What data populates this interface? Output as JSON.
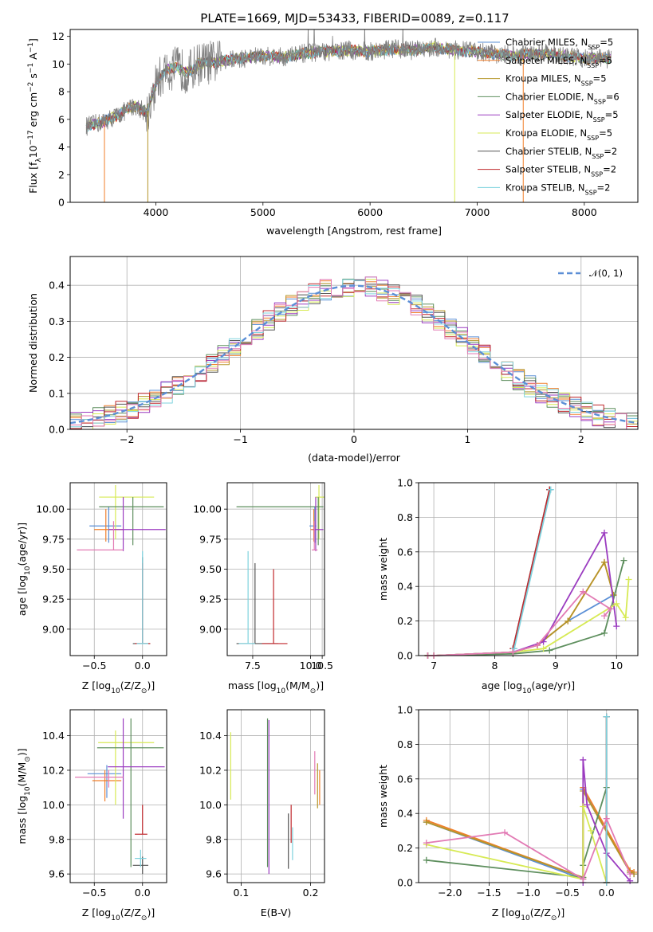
{
  "figure": {
    "title": "PLATE=1669, MJD=53433, FIBERID=0089, z=0.117"
  },
  "legend_models": [
    {
      "name": "Chabrier MILES",
      "nssp": "5",
      "color": "#5a8fd6"
    },
    {
      "name": "Salpeter MILES",
      "nssp": "5",
      "color": "#f07f2a"
    },
    {
      "name": "Kroupa MILES",
      "nssp": "5",
      "color": "#b5962a"
    },
    {
      "name": "Chabrier ELODIE",
      "nssp": "6",
      "color": "#5e8f5e"
    },
    {
      "name": "Salpeter ELODIE",
      "nssp": "5",
      "color": "#9b3cc0"
    },
    {
      "name": "Kroupa ELODIE",
      "nssp": "5",
      "color": "#d7ea55"
    },
    {
      "name": "Chabrier STELIB",
      "nssp": "2",
      "color": "#555555"
    },
    {
      "name": "Salpeter STELIB",
      "nssp": "2",
      "color": "#c0282c"
    },
    {
      "name": "Kroupa STELIB",
      "nssp": "2",
      "color": "#7ed2de"
    }
  ],
  "extra_colors": {
    "pink": "#e27ab4",
    "data_gray": "#808080",
    "gaussian": "#5b8ed6"
  },
  "chart_data": [
    {
      "id": "spectrum",
      "type": "line",
      "title": "PLATE=1669, MJD=53433, FIBERID=0089, z=0.117",
      "xlabel": "wavelength [Angstrom, rest frame]",
      "ylabel_prefix": "Flux [f",
      "ylabel_mid": "10",
      "ylabel_sup1": "−17",
      "ylabel_mid2": " erg cm",
      "ylabel_sup2": "−2",
      "ylabel_mid3": " s",
      "ylabel_sup3": "−1",
      "ylabel_suffix": " A",
      "ylabel_sup4": "−1",
      "ylabel_close": "]",
      "xlim": [
        3200,
        8500
      ],
      "ylim": [
        0,
        12.5
      ],
      "xticks": [
        "4000",
        "5000",
        "6000",
        "7000",
        "8000"
      ],
      "yticks": [
        "0",
        "2",
        "4",
        "6",
        "8",
        "10",
        "12"
      ],
      "grid": false,
      "legend_position": "top-right",
      "data_series": "observed spectrum (gray)",
      "trend": [
        [
          3350,
          5.5
        ],
        [
          3500,
          5.8
        ],
        [
          3650,
          6.3
        ],
        [
          3800,
          7.0
        ],
        [
          3920,
          6.5
        ],
        [
          4000,
          8.6
        ],
        [
          4100,
          9.6
        ],
        [
          4200,
          9.7
        ],
        [
          4300,
          9.4
        ],
        [
          4400,
          10.0
        ],
        [
          4600,
          10.2
        ],
        [
          4800,
          10.4
        ],
        [
          5000,
          10.6
        ],
        [
          5200,
          10.5
        ],
        [
          5400,
          10.8
        ],
        [
          5600,
          10.9
        ],
        [
          5800,
          11.0
        ],
        [
          6000,
          10.9
        ],
        [
          6200,
          11.1
        ],
        [
          6400,
          11.0
        ],
        [
          6600,
          11.2
        ],
        [
          6800,
          11.0
        ],
        [
          7000,
          10.9
        ],
        [
          7200,
          10.7
        ],
        [
          7400,
          10.6
        ],
        [
          7600,
          10.8
        ],
        [
          7800,
          10.6
        ],
        [
          8000,
          10.4
        ],
        [
          8250,
          10.4
        ]
      ]
    },
    {
      "id": "residuals",
      "type": "line",
      "xlabel": "(data-model)/error",
      "ylabel": "Normed distribution",
      "xlim": [
        -2.5,
        2.5
      ],
      "ylim": [
        0,
        0.48
      ],
      "xticks": [
        "−2",
        "−1",
        "0",
        "1",
        "2"
      ],
      "yticks": [
        "0.0",
        "0.1",
        "0.2",
        "0.3",
        "0.4"
      ],
      "grid": true,
      "legend_position": "top-right",
      "legend_label": "𝒩(0, 1)",
      "bin_width": 0.1
    },
    {
      "id": "age-vs-Z",
      "type": "scatter",
      "xlabel_prefix": "Z [log",
      "xlabel_sub": "10",
      "xlabel_mid": "(Z/Z",
      "xlabel_sub2": "⊙",
      "xlabel_close": ")]",
      "ylabel_prefix": "age  [log",
      "ylabel_sub": "10",
      "ylabel_close": "(age/yr)]",
      "xlim": [
        -0.75,
        0.25
      ],
      "ylim": [
        8.78,
        10.22
      ],
      "xticks": [
        "−0.5",
        "0.0"
      ],
      "yticks": [
        "9.00",
        "9.25",
        "9.50",
        "9.75",
        "10.00"
      ],
      "grid": true,
      "points": [
        {
          "x": -0.35,
          "y": 9.86,
          "xlo": -0.55,
          "xhi": -0.22,
          "ylo": 9.72,
          "yhi": 10.02
        },
        {
          "x": -0.38,
          "y": 9.83,
          "xlo": -0.5,
          "xhi": -0.2,
          "ylo": 9.73,
          "yhi": 10.0
        },
        {
          "x": -0.28,
          "y": 10.1,
          "xlo": -0.45,
          "xhi": 0.12,
          "ylo": 9.75,
          "yhi": 10.2
        },
        {
          "x": -0.1,
          "y": 10.02,
          "xlo": -0.45,
          "xhi": 0.22,
          "ylo": 9.7,
          "yhi": 10.1
        },
        {
          "x": -0.2,
          "y": 9.83,
          "xlo": -0.35,
          "xhi": 0.24,
          "ylo": 9.65,
          "yhi": 10.1
        },
        {
          "x": -0.3,
          "y": 9.66,
          "xlo": -0.68,
          "xhi": -0.2,
          "ylo": 9.66,
          "yhi": 9.9
        },
        {
          "x": 0.0,
          "y": 8.88,
          "xlo": -0.1,
          "xhi": 0.08,
          "ylo": 8.88,
          "yhi": 9.6
        },
        {
          "x": 0.0,
          "y": 8.88,
          "xlo": -0.08,
          "xhi": 0.08,
          "ylo": 8.88,
          "yhi": 9.55
        },
        {
          "x": 0.0,
          "y": 8.88,
          "xlo": -0.06,
          "xhi": 0.06,
          "ylo": 8.88,
          "yhi": 9.65
        }
      ]
    },
    {
      "id": "age-vs-mass",
      "type": "scatter",
      "xlabel_prefix": "mass [log",
      "xlabel_sub": "10",
      "xlabel_mid": "(M/M",
      "xlabel_sub2": "⊙",
      "xlabel_close": ")]",
      "ylabel_prefix": "age  [log",
      "ylabel_sub": "10",
      "ylabel_close": "(age/yr)]",
      "xlim": [
        6.4,
        10.6
      ],
      "ylim": [
        8.78,
        10.22
      ],
      "xticks": [
        "7.5",
        "10.0",
        "10.5"
      ],
      "yticks": [
        "9.00",
        "9.25",
        "9.50",
        "9.75",
        "10.00"
      ],
      "grid": true,
      "points": [
        {
          "x": 10.18,
          "y": 9.86,
          "xlo": 9.95,
          "xhi": 10.25,
          "ylo": 9.72,
          "yhi": 10.02
        },
        {
          "x": 10.14,
          "y": 9.83,
          "xlo": 10.0,
          "xhi": 10.2,
          "ylo": 9.73,
          "yhi": 10.0
        },
        {
          "x": 10.36,
          "y": 10.1,
          "xlo": 10.2,
          "xhi": 10.6,
          "ylo": 9.75,
          "yhi": 10.2
        },
        {
          "x": 10.33,
          "y": 10.02,
          "xlo": 6.8,
          "xhi": 10.55,
          "ylo": 9.7,
          "yhi": 10.1
        },
        {
          "x": 10.22,
          "y": 9.83,
          "xlo": 10.1,
          "xhi": 10.55,
          "ylo": 9.65,
          "yhi": 10.1
        },
        {
          "x": 10.16,
          "y": 9.66,
          "xlo": 10.05,
          "xhi": 10.3,
          "ylo": 9.66,
          "yhi": 9.9
        },
        {
          "x": 7.6,
          "y": 8.88,
          "xlo": 6.8,
          "xhi": 8.6,
          "ylo": 8.88,
          "yhi": 9.55
        },
        {
          "x": 8.4,
          "y": 8.88,
          "xlo": 7.9,
          "xhi": 9.0,
          "ylo": 8.88,
          "yhi": 9.5
        },
        {
          "x": 7.3,
          "y": 8.88,
          "xlo": 6.9,
          "xhi": 7.6,
          "ylo": 8.88,
          "yhi": 9.65
        }
      ]
    },
    {
      "id": "massweight-vs-age",
      "type": "line",
      "ylabel": "mass weight",
      "xlabel_prefix": "age  [log",
      "xlabel_sub": "10",
      "xlabel_close": "(age/yr)]",
      "xlim": [
        6.75,
        10.35
      ],
      "ylim": [
        0,
        1.0
      ],
      "xticks": [
        "7",
        "8",
        "9",
        "10"
      ],
      "yticks": [
        "0.0",
        "0.2",
        "0.4",
        "0.6",
        "0.8",
        "1.0"
      ],
      "grid": true,
      "series": [
        {
          "x": [
            6.9,
            7.0,
            8.3,
            8.7,
            9.2,
            9.95
          ],
          "y": [
            0.0,
            0.0,
            0.02,
            0.06,
            0.2,
            0.35
          ]
        },
        {
          "x": [
            6.9,
            7.0,
            8.3,
            8.7,
            9.2,
            9.8,
            9.95
          ],
          "y": [
            0.0,
            0.0,
            0.02,
            0.06,
            0.2,
            0.54,
            0.35
          ]
        },
        {
          "x": [
            6.9,
            7.0,
            8.3,
            8.7,
            9.2,
            9.8,
            9.95
          ],
          "y": [
            0.0,
            0.0,
            0.02,
            0.06,
            0.2,
            0.54,
            0.35
          ]
        },
        {
          "x": [
            6.9,
            7.0,
            8.3,
            8.9,
            9.8,
            10.12
          ],
          "y": [
            0.0,
            0.0,
            0.01,
            0.03,
            0.13,
            0.55
          ]
        },
        {
          "x": [
            6.9,
            7.0,
            8.3,
            8.8,
            9.8,
            10.0
          ],
          "y": [
            0.0,
            0.0,
            0.02,
            0.08,
            0.71,
            0.17
          ]
        },
        {
          "x": [
            6.9,
            7.0,
            8.3,
            8.8,
            10.0,
            10.15,
            10.2
          ],
          "y": [
            0.0,
            0.0,
            0.02,
            0.04,
            0.3,
            0.22,
            0.44
          ]
        },
        {
          "x": [
            8.3,
            8.9
          ],
          "y": [
            0.04,
            0.96
          ]
        },
        {
          "x": [
            8.3,
            8.9
          ],
          "y": [
            0.04,
            0.96
          ]
        },
        {
          "x": [
            8.32,
            8.92
          ],
          "y": [
            0.04,
            0.96
          ]
        },
        {
          "x": [
            6.9,
            7.0,
            8.3,
            8.7,
            9.45,
            9.9,
            9.8
          ],
          "y": [
            0.0,
            0.0,
            0.02,
            0.06,
            0.37,
            0.27,
            0.23
          ]
        }
      ]
    },
    {
      "id": "mass-vs-Z",
      "type": "scatter",
      "xlabel_prefix": "Z [log",
      "xlabel_sub": "10",
      "xlabel_mid": "(Z/Z",
      "xlabel_sub2": "⊙",
      "xlabel_close": ")]",
      "ylabel_prefix": "mass [log",
      "ylabel_sub": "10",
      "ylabel_mid": "(M/M",
      "ylabel_sub2": "⊙",
      "ylabel_close": ")]",
      "xlim": [
        -0.75,
        0.25
      ],
      "ylim": [
        9.55,
        10.55
      ],
      "xticks": [
        "−0.5",
        "0.0"
      ],
      "yticks": [
        "9.6",
        "9.8",
        "10.0",
        "10.2",
        "10.4"
      ],
      "grid": true,
      "points": [
        {
          "x": -0.37,
          "y": 10.18,
          "xlo": -0.57,
          "xhi": -0.22,
          "ylo": 10.04,
          "yhi": 10.23
        },
        {
          "x": -0.39,
          "y": 10.14,
          "xlo": -0.52,
          "xhi": -0.22,
          "ylo": 10.02,
          "yhi": 10.2
        },
        {
          "x": -0.28,
          "y": 10.36,
          "xlo": -0.46,
          "xhi": 0.12,
          "ylo": 10.0,
          "yhi": 10.43
        },
        {
          "x": -0.12,
          "y": 10.33,
          "xlo": -0.47,
          "xhi": 0.22,
          "ylo": 9.64,
          "yhi": 10.5
        },
        {
          "x": -0.2,
          "y": 10.22,
          "xlo": -0.36,
          "xhi": 0.23,
          "ylo": 9.92,
          "yhi": 10.5
        },
        {
          "x": -0.35,
          "y": 10.16,
          "xlo": -0.7,
          "xhi": -0.2,
          "ylo": 10.1,
          "yhi": 10.2
        },
        {
          "x": 0.0,
          "y": 9.65,
          "xlo": -0.1,
          "xhi": 0.06,
          "ylo": 9.6,
          "yhi": 9.7
        },
        {
          "x": 0.0,
          "y": 9.83,
          "xlo": -0.08,
          "xhi": 0.05,
          "ylo": 9.83,
          "yhi": 10.0
        },
        {
          "x": -0.02,
          "y": 9.69,
          "xlo": -0.08,
          "xhi": 0.04,
          "ylo": 9.64,
          "yhi": 9.74
        }
      ]
    },
    {
      "id": "mass-vs-EBV",
      "type": "scatter",
      "xlabel": "E(B-V)",
      "xlim": [
        0.08,
        0.22
      ],
      "ylim": [
        9.55,
        10.55
      ],
      "xticks": [
        "0.1",
        "0.2"
      ],
      "yticks": [
        "9.6",
        "9.8",
        "10.0",
        "10.2",
        "10.4"
      ],
      "grid": true,
      "segments": [
        {
          "x": 0.085,
          "ylo": 10.03,
          "yhi": 10.42,
          "c": 5
        },
        {
          "x": 0.138,
          "ylo": 9.64,
          "yhi": 10.5,
          "c": 3
        },
        {
          "x": 0.14,
          "ylo": 9.6,
          "yhi": 10.49,
          "c": 4
        },
        {
          "x": 0.168,
          "ylo": 9.63,
          "yhi": 9.95,
          "c": 6
        },
        {
          "x": 0.172,
          "ylo": 9.78,
          "yhi": 10.0,
          "c": 7
        },
        {
          "x": 0.174,
          "ylo": 9.68,
          "yhi": 9.87,
          "c": 8
        },
        {
          "x": 0.206,
          "ylo": 10.06,
          "yhi": 10.31,
          "c": 9
        },
        {
          "x": 0.21,
          "ylo": 9.98,
          "yhi": 10.24,
          "c": 2
        },
        {
          "x": 0.213,
          "ylo": 10.0,
          "yhi": 10.2,
          "c": 1
        }
      ]
    },
    {
      "id": "massweight-vs-Z",
      "type": "line",
      "ylabel": "mass weight",
      "xlabel_prefix": "Z [log",
      "xlabel_sub": "10",
      "xlabel_mid": "(Z/Z",
      "xlabel_sub2": "⊙",
      "xlabel_close": ")]",
      "xlim": [
        -2.4,
        0.4
      ],
      "ylim": [
        0,
        1.0
      ],
      "xticks": [
        "−2.0",
        "−1.5",
        "−1.0",
        "−0.5",
        "0.0"
      ],
      "yticks": [
        "0.0",
        "0.2",
        "0.4",
        "0.6",
        "0.8",
        "1.0"
      ],
      "grid": true,
      "series": [
        {
          "x": [
            -2.3,
            -0.3,
            -0.3,
            0.3,
            0.35
          ],
          "y": [
            0.35,
            0.02,
            0.54,
            0.06,
            0.05
          ]
        },
        {
          "x": [
            -2.3,
            -0.3,
            -0.3,
            0.3,
            0.35
          ],
          "y": [
            0.36,
            0.03,
            0.55,
            0.07,
            0.06
          ]
        },
        {
          "x": [
            -2.3,
            -0.3,
            -0.3,
            0.3,
            0.35
          ],
          "y": [
            0.35,
            0.03,
            0.53,
            0.06,
            0.05
          ]
        },
        {
          "x": [
            -2.3,
            -0.3,
            -0.3,
            0.0,
            0.0
          ],
          "y": [
            0.13,
            0.03,
            0.1,
            0.55,
            0.0
          ]
        },
        {
          "x": [
            -0.3,
            -0.3,
            -0.25,
            0.0,
            0.3
          ],
          "y": [
            0.0,
            0.71,
            0.45,
            0.17,
            0.01
          ]
        },
        {
          "x": [
            -2.3,
            -0.3,
            -0.3,
            -0.2,
            0.0
          ],
          "y": [
            0.22,
            0.02,
            0.44,
            0.3,
            0.0
          ]
        },
        {
          "x": [
            0.0,
            0.0
          ],
          "y": [
            0.0,
            0.96
          ]
        },
        {
          "x": [
            0.0,
            0.0
          ],
          "y": [
            0.0,
            0.96
          ]
        },
        {
          "x": [
            0.0,
            0.0
          ],
          "y": [
            0.0,
            0.96
          ]
        },
        {
          "x": [
            -2.3,
            -1.3,
            -0.3,
            0.0,
            0.3
          ],
          "y": [
            0.23,
            0.29,
            0.02,
            0.37,
            0.05
          ]
        }
      ]
    }
  ]
}
